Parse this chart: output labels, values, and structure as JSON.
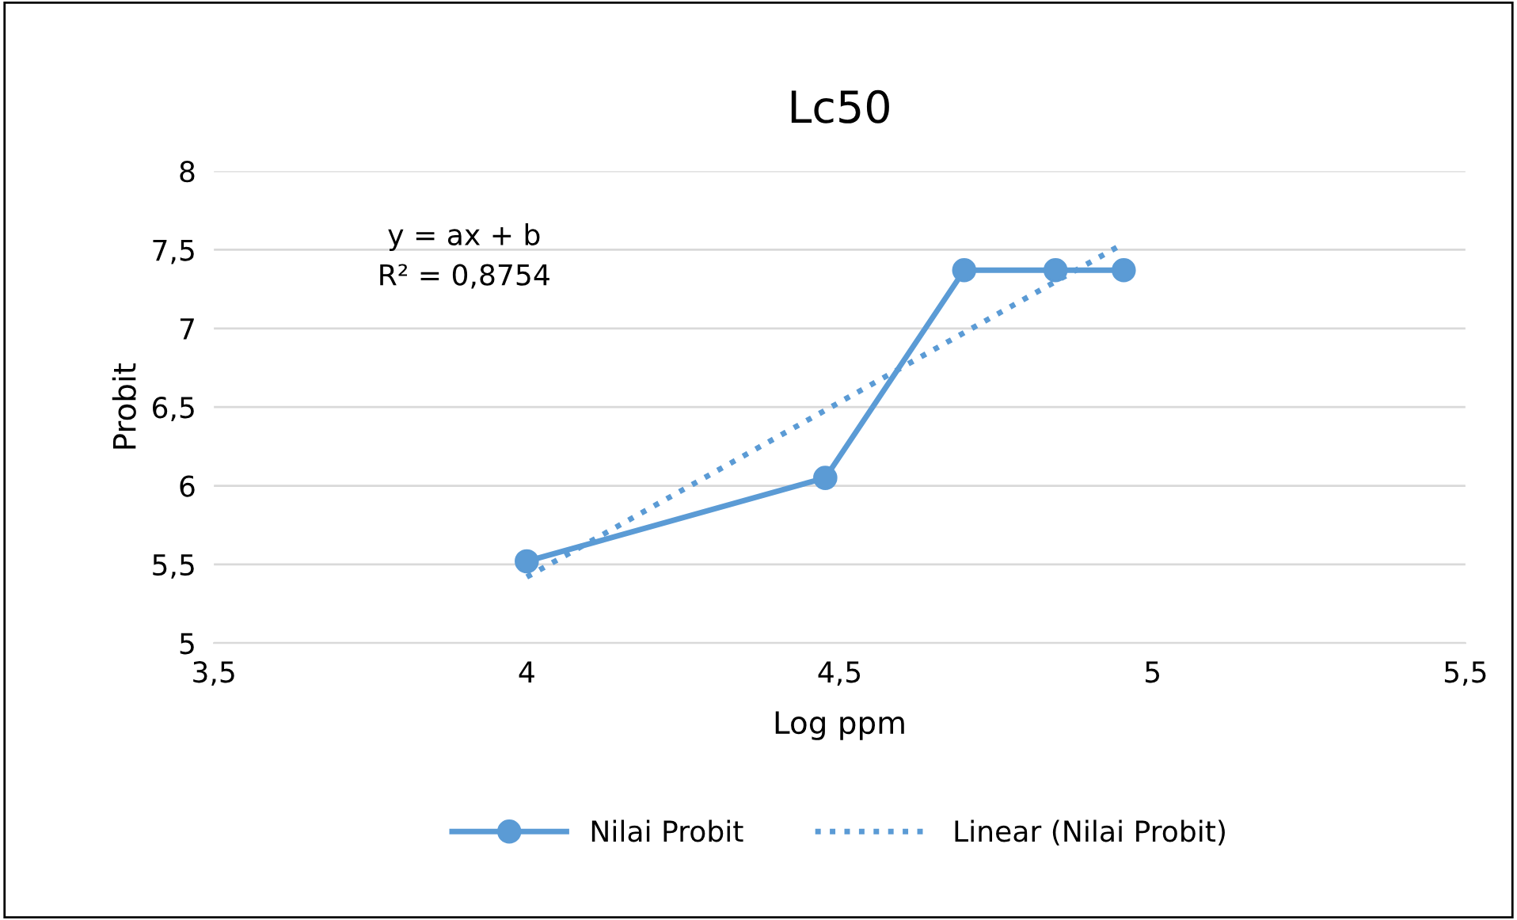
{
  "chart_data": {
    "type": "line",
    "title": "Lc50",
    "xlabel": "Log ppm",
    "ylabel": "Probit",
    "annotations": [
      "y = ax + b",
      "R² = 0,8754"
    ],
    "series": [
      {
        "name": "Nilai Probit",
        "color": "#5b9bd5",
        "x": [
          4.0,
          4.477,
          4.699,
          4.845,
          4.954
        ],
        "values": [
          5.52,
          6.05,
          7.37,
          7.37,
          7.37
        ],
        "marker": "circle",
        "line_style": "solid"
      },
      {
        "name": "Linear (Nilai Probit)",
        "color": "#5b9bd5",
        "x": [
          4.0,
          4.954
        ],
        "values": [
          5.42,
          7.54
        ],
        "marker": "none",
        "line_style": "dotted"
      }
    ],
    "xlim": [
      3.5,
      5.5
    ],
    "ylim": [
      5,
      8
    ],
    "xticks": [
      {
        "value": 3.5,
        "label": "3,5"
      },
      4,
      {
        "value": 4.5,
        "label": "4,5"
      },
      5,
      {
        "value": 5.5,
        "label": "5,5"
      }
    ],
    "yticks": [
      5,
      {
        "value": 5.5,
        "label": "5,5"
      },
      6,
      {
        "value": 6.5,
        "label": "6,5"
      },
      7,
      {
        "value": 7.5,
        "label": "7,5"
      },
      8
    ],
    "grid": "y",
    "legend": "bottom"
  }
}
